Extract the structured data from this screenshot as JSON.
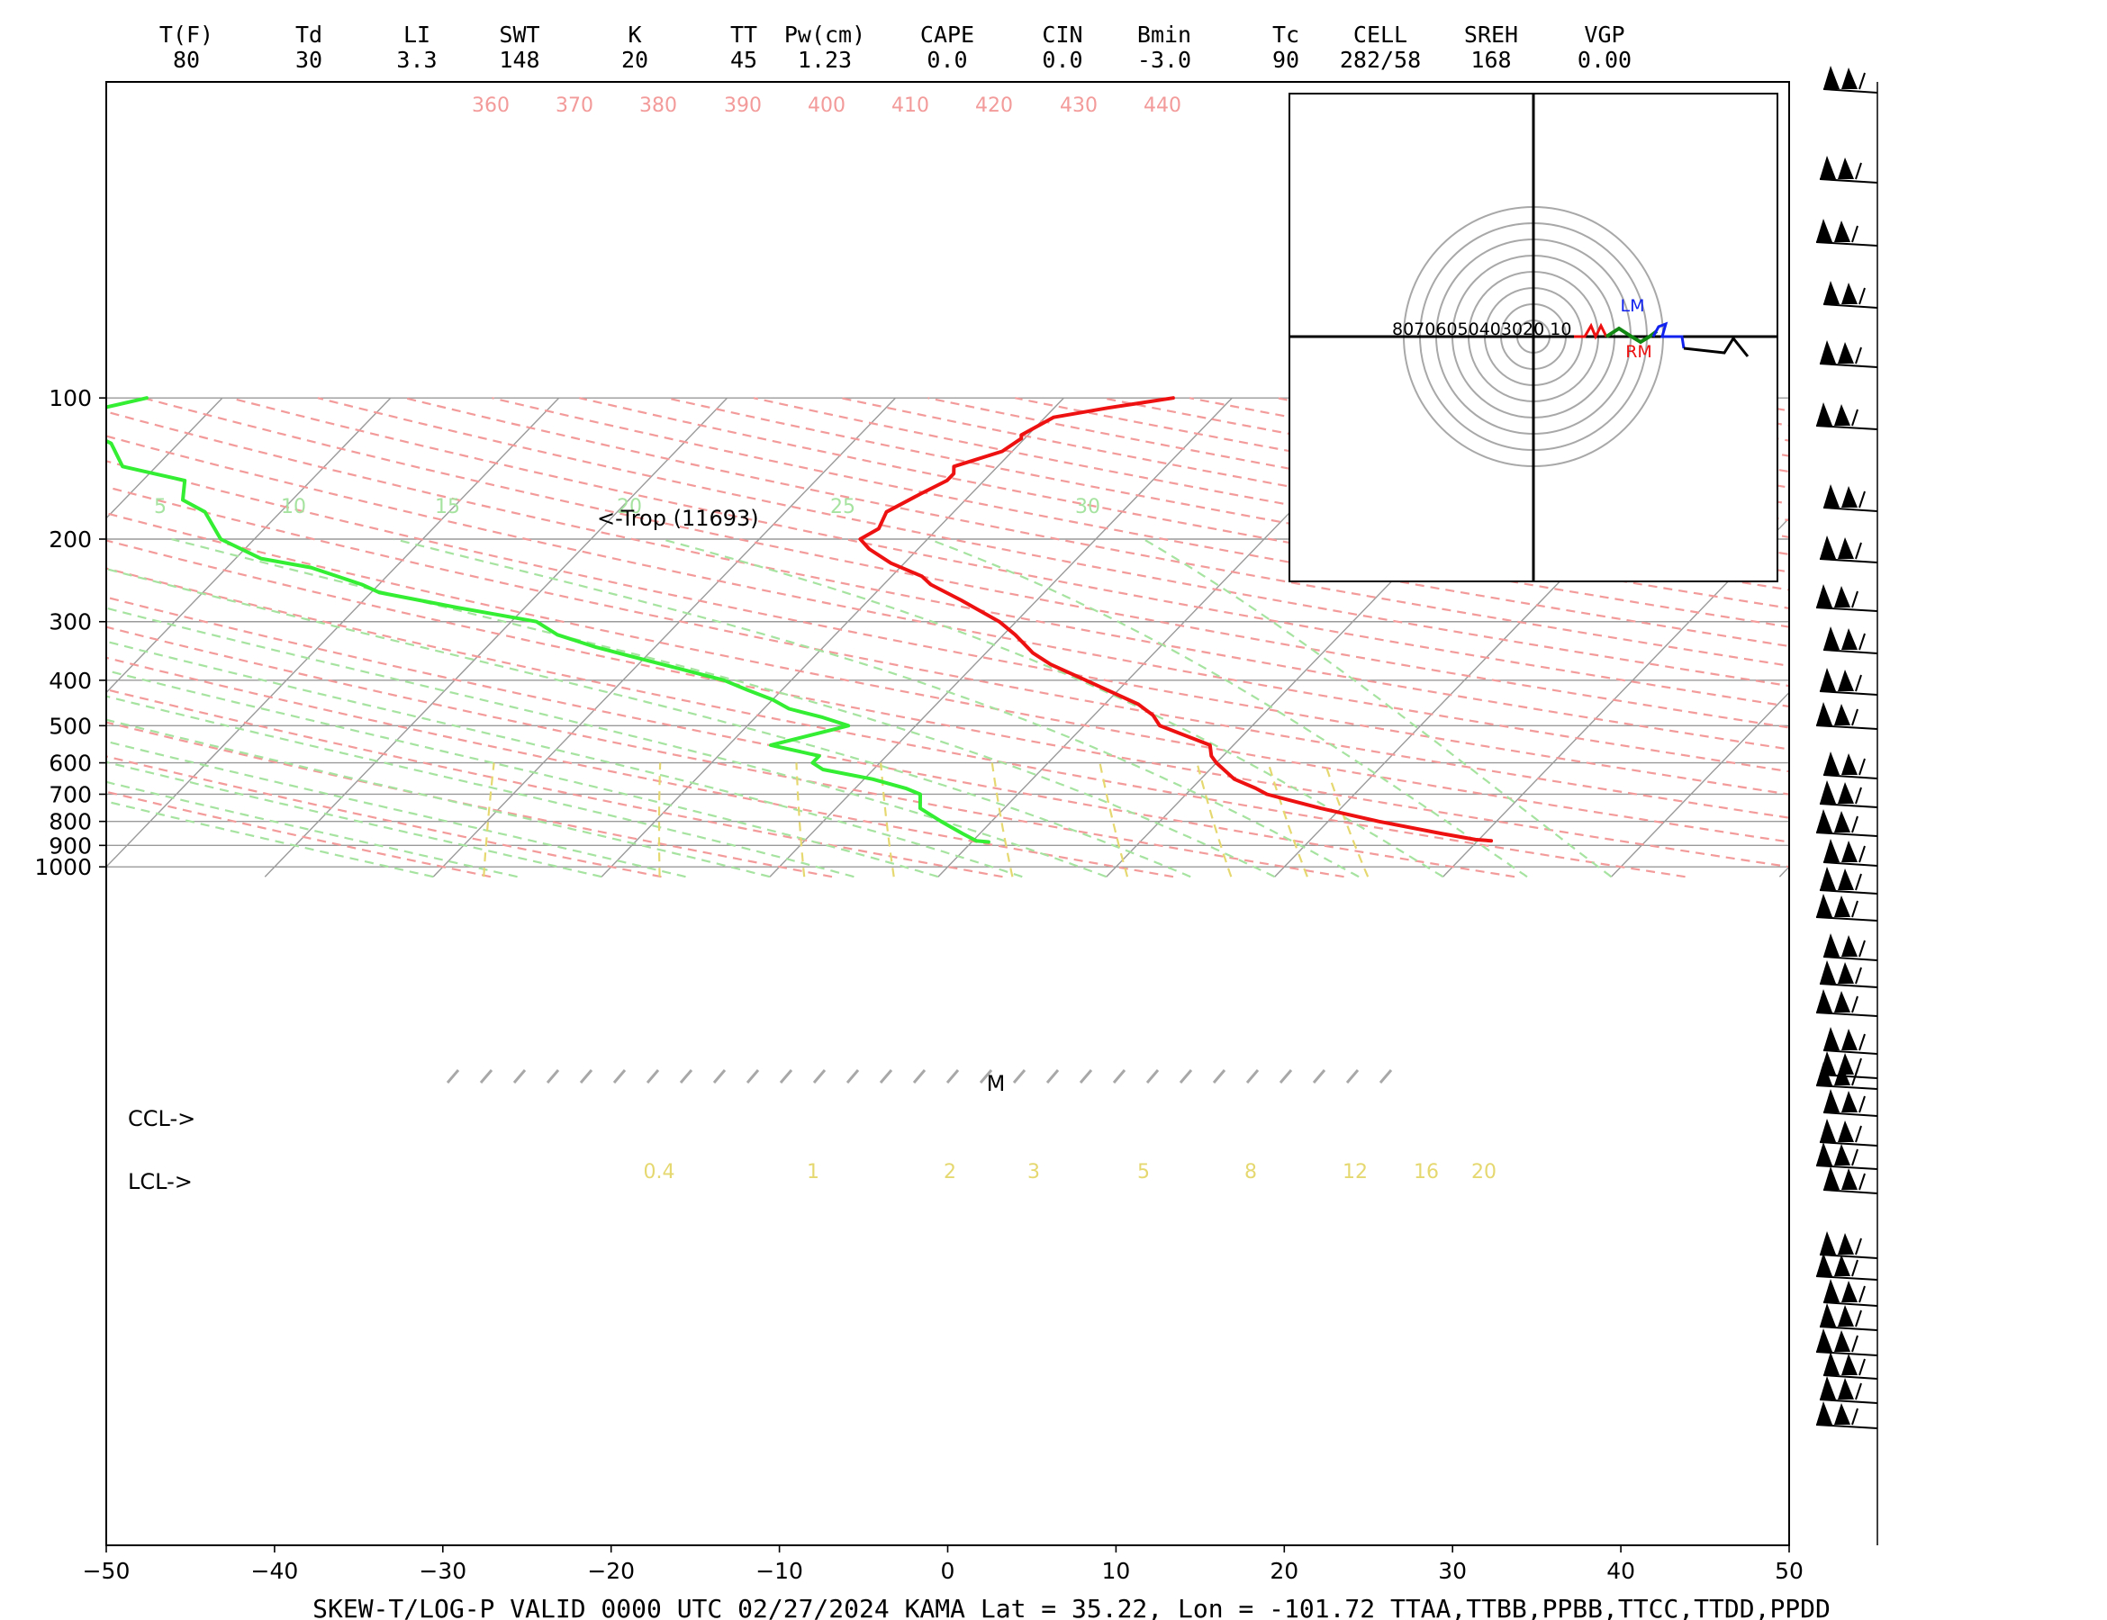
{
  "chart_data": {
    "type": "line",
    "title": "SKEW-T/LOG-P  VALID 0000 UTC 02/27/2024   KAMA    Lat = 35.22, Lon = -101.72    TTAA,TTBB,PPBB,TTCC,TTDD,PPDD",
    "xlabel": "",
    "ylabel": "",
    "xlim": [
      -50,
      50
    ],
    "ylim": [
      1050,
      100
    ],
    "y_scale": "log",
    "grid": true,
    "x_ticks": [
      "−50",
      "−40",
      "−30",
      "−20",
      "−10",
      "0",
      "10",
      "20",
      "30",
      "40",
      "50"
    ],
    "y_ticks": [
      "100",
      "200",
      "300",
      "400",
      "500",
      "600",
      "700",
      "800",
      "900",
      "1000"
    ],
    "indices": {
      "labels": [
        "T(F)",
        "Td",
        "LI",
        "SWT",
        "K",
        "TT",
        "Pw(cm)",
        "CAPE",
        "CIN",
        "Bmin",
        "Tc",
        "CELL",
        "SREH",
        "VGP"
      ],
      "values": [
        "80",
        "30",
        "3.3",
        "148",
        "20",
        "45",
        "1.23",
        "0.0",
        "0.0",
        "-3.0",
        "90",
        "282/58",
        "168",
        "0.00"
      ]
    },
    "series": [
      {
        "name": "Temperature",
        "color": "#ee1111",
        "points": [
          [
            880,
            30.8
          ],
          [
            875,
            29.8
          ],
          [
            850,
            27.5
          ],
          [
            800,
            23.0
          ],
          [
            750,
            18.8
          ],
          [
            700,
            14.8
          ],
          [
            680,
            13.8
          ],
          [
            650,
            12.0
          ],
          [
            600,
            10.0
          ],
          [
            580,
            9.3
          ],
          [
            550,
            8.6
          ],
          [
            500,
            4.5
          ],
          [
            475,
            3.5
          ],
          [
            450,
            2.0
          ],
          [
            400,
            -2.5
          ],
          [
            370,
            -5.5
          ],
          [
            350,
            -7.2
          ],
          [
            320,
            -9.3
          ],
          [
            300,
            -11.0
          ],
          [
            270,
            -14.5
          ],
          [
            250,
            -17.2
          ],
          [
            240,
            -18.2
          ],
          [
            225,
            -20.8
          ],
          [
            210,
            -22.9
          ],
          [
            200,
            -24.0
          ],
          [
            190,
            -23.5
          ],
          [
            175,
            -24.0
          ],
          [
            160,
            -23.0
          ],
          [
            150,
            -22.2
          ],
          [
            145,
            -22.2
          ],
          [
            140,
            -22.6
          ],
          [
            130,
            -20.6
          ],
          [
            122,
            -20.2
          ],
          [
            120,
            -20.4
          ],
          [
            110,
            -19.5
          ],
          [
            105,
            -16.8
          ],
          [
            100,
            -13.5
          ]
        ]
      },
      {
        "name": "Dewpoint",
        "color": "#33ee33",
        "points": [
          [
            885,
            1.0
          ],
          [
            880,
            0.2
          ],
          [
            850,
            -1.0
          ],
          [
            800,
            -3.0
          ],
          [
            750,
            -5.0
          ],
          [
            700,
            -5.8
          ],
          [
            680,
            -7.0
          ],
          [
            650,
            -9.5
          ],
          [
            620,
            -13.0
          ],
          [
            600,
            -14.0
          ],
          [
            580,
            -14.0
          ],
          [
            550,
            -17.5
          ],
          [
            500,
            -14.0
          ],
          [
            480,
            -16.0
          ],
          [
            460,
            -18.5
          ],
          [
            440,
            -20.0
          ],
          [
            420,
            -22.0
          ],
          [
            400,
            -24.0
          ],
          [
            380,
            -27.0
          ],
          [
            355,
            -31.0
          ],
          [
            340,
            -33.5
          ],
          [
            320,
            -36.5
          ],
          [
            300,
            -38.5
          ],
          [
            280,
            -44.0
          ],
          [
            260,
            -49.5
          ],
          [
            250,
            -51.0
          ],
          [
            230,
            -55.0
          ],
          [
            220,
            -58.5
          ],
          [
            200,
            -62.0
          ],
          [
            175,
            -64.5
          ],
          [
            165,
            -66.5
          ],
          [
            150,
            -67.5
          ],
          [
            140,
            -72.0
          ],
          [
            125,
            -74.0
          ],
          [
            115,
            -77.0
          ],
          [
            105,
            -76.5
          ],
          [
            100,
            -74.5
          ]
        ]
      }
    ],
    "isentrope_labels": [
      "360",
      "370",
      "380",
      "390",
      "400",
      "410",
      "420",
      "430",
      "440"
    ],
    "moist_adiabat_labels": [
      "5",
      "10",
      "15",
      "20",
      "25",
      "30"
    ],
    "mixing_ratio_labels": [
      "0.4",
      "1",
      "2",
      "3",
      "5",
      "8",
      "12",
      "16",
      "20"
    ],
    "annotations": {
      "tropopause": "<-Trop (11693)",
      "ccl": "CCL->",
      "lcl": "LCL->",
      "m_marker": "M"
    },
    "hodograph": {
      "ring_labels": "80706050403020 10",
      "left_mover": "LM",
      "right_mover": "RM"
    },
    "colors": {
      "isotherm": "#9a9a9a",
      "isobar": "#9a9a9a",
      "dry_adiabat": "#f39a9a",
      "moist_adiabat": "#a6e3a0",
      "mixing_ratio": "#e6d870",
      "temperature": "#ee1111",
      "dewpoint": "#33ee33"
    }
  }
}
